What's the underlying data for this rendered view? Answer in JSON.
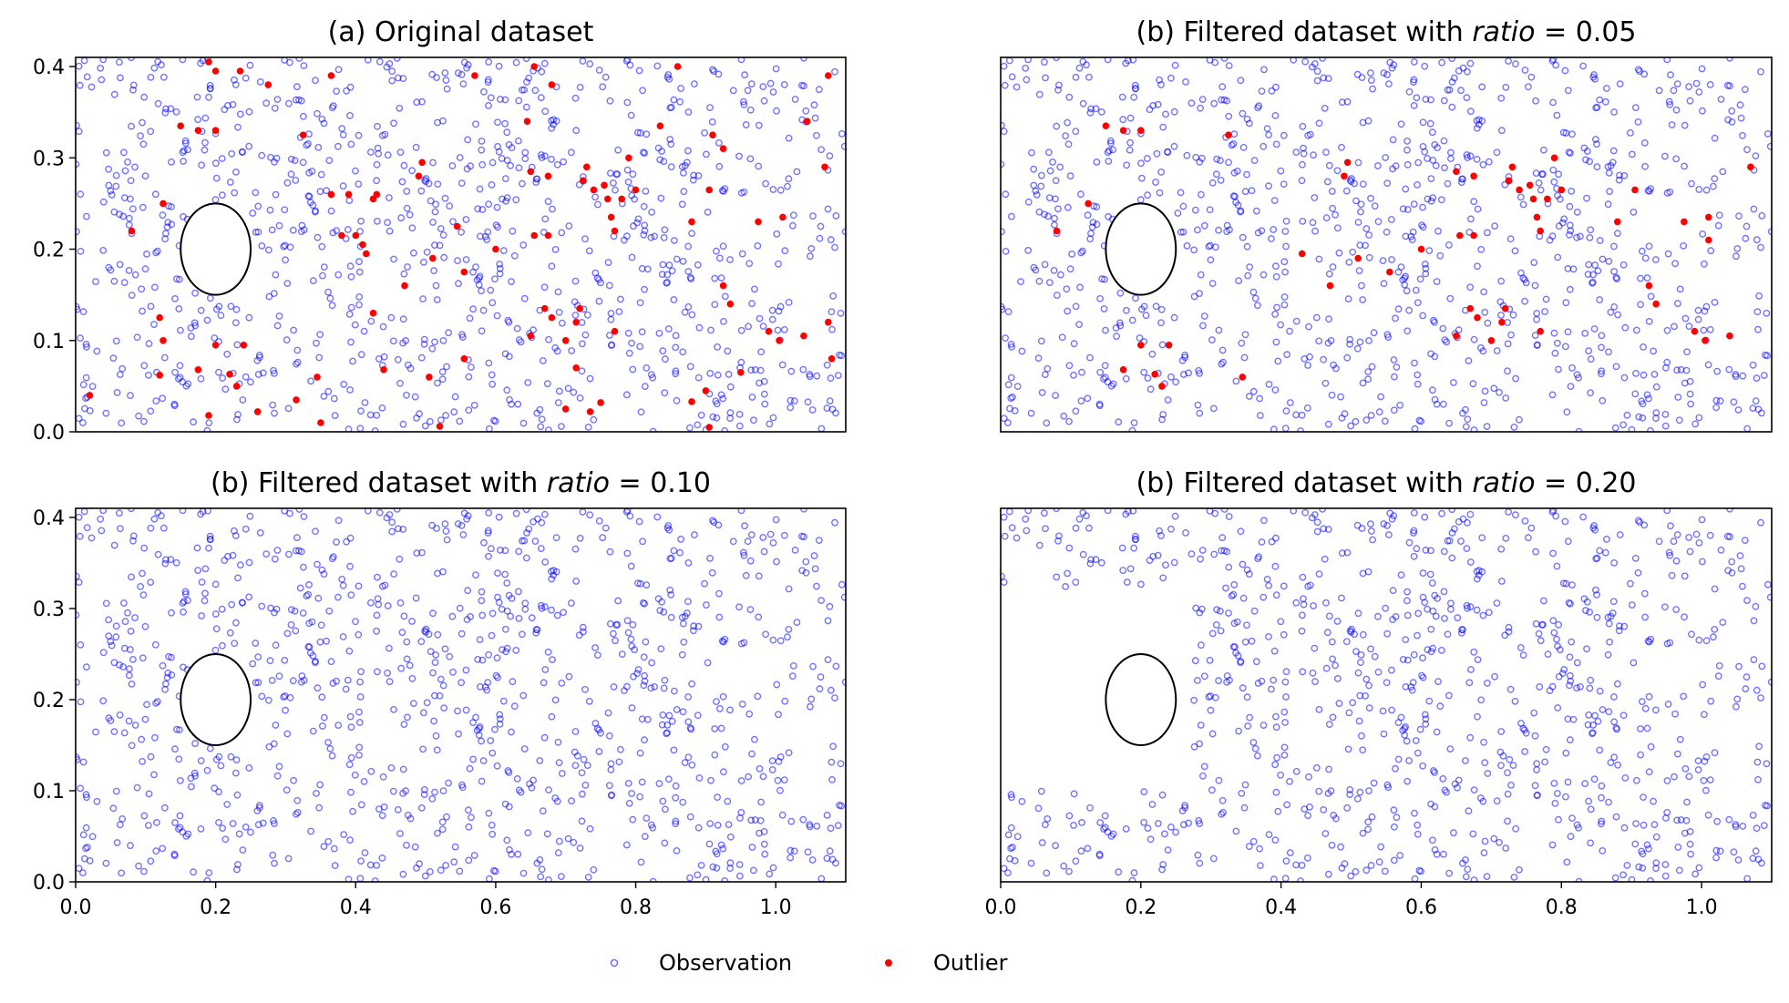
{
  "colors": {
    "observation": "#0000ff",
    "outlier": "#ff0000",
    "cylinder": "#000000",
    "axes": "#000000"
  },
  "legend": {
    "observation_label": "Observation",
    "outlier_label": "Outlier",
    "placement": "bottom-center"
  },
  "chart_data": [
    {
      "type": "scatter",
      "title_prefix": "(a) Original dataset",
      "title_italic": "",
      "title_suffix": "",
      "xlim": [
        0.0,
        1.1
      ],
      "ylim": [
        0.0,
        0.41
      ],
      "xticks": [
        "0.0",
        "0.2",
        "0.4",
        "0.6",
        "0.8",
        "1.0"
      ],
      "yticks": [
        "0.0",
        "0.1",
        "0.2",
        "0.3",
        "0.4"
      ],
      "show_xticks": false,
      "show_yticks": true,
      "cylinder": {
        "center": [
          0.2,
          0.2
        ],
        "radius": 0.05
      },
      "observation": {
        "seed": 7,
        "count": 1000,
        "exclude_x_below": null,
        "max_x": 1.1
      },
      "series": [
        {
          "name": "Outlier",
          "points": [
            [
              0.19,
              0.405
            ],
            [
              0.2,
              0.395
            ],
            [
              0.235,
              0.395
            ],
            [
              0.275,
              0.38
            ],
            [
              0.365,
              0.39
            ],
            [
              0.57,
              0.39
            ],
            [
              0.655,
              0.4
            ],
            [
              0.68,
              0.38
            ],
            [
              0.86,
              0.4
            ],
            [
              1.075,
              0.39
            ],
            [
              0.15,
              0.335
            ],
            [
              0.175,
              0.33
            ],
            [
              0.2,
              0.33
            ],
            [
              0.325,
              0.325
            ],
            [
              0.645,
              0.34
            ],
            [
              0.835,
              0.335
            ],
            [
              1.045,
              0.34
            ],
            [
              0.91,
              0.325
            ],
            [
              0.925,
              0.31
            ],
            [
              0.495,
              0.295
            ],
            [
              0.49,
              0.28
            ],
            [
              0.65,
              0.285
            ],
            [
              0.675,
              0.28
            ],
            [
              0.73,
              0.29
            ],
            [
              0.725,
              0.275
            ],
            [
              0.79,
              0.3
            ],
            [
              1.07,
              0.29
            ],
            [
              0.125,
              0.25
            ],
            [
              0.365,
              0.26
            ],
            [
              0.39,
              0.26
            ],
            [
              0.43,
              0.26
            ],
            [
              0.425,
              0.255
            ],
            [
              0.74,
              0.265
            ],
            [
              0.755,
              0.27
            ],
            [
              0.76,
              0.255
            ],
            [
              0.78,
              0.255
            ],
            [
              0.8,
              0.265
            ],
            [
              0.905,
              0.265
            ],
            [
              0.08,
              0.22
            ],
            [
              0.16,
              0.215
            ],
            [
              0.38,
              0.215
            ],
            [
              0.4,
              0.215
            ],
            [
              0.41,
              0.205
            ],
            [
              0.415,
              0.195
            ],
            [
              0.765,
              0.235
            ],
            [
              0.77,
              0.22
            ],
            [
              0.88,
              0.23
            ],
            [
              0.975,
              0.23
            ],
            [
              1.01,
              0.235
            ],
            [
              0.655,
              0.215
            ],
            [
              0.675,
              0.215
            ],
            [
              0.51,
              0.19
            ],
            [
              0.555,
              0.175
            ],
            [
              0.47,
              0.16
            ],
            [
              0.925,
              0.16
            ],
            [
              0.935,
              0.14
            ],
            [
              0.67,
              0.135
            ],
            [
              0.68,
              0.125
            ],
            [
              0.72,
              0.135
            ],
            [
              0.715,
              0.12
            ],
            [
              0.12,
              0.125
            ],
            [
              0.125,
              0.1
            ],
            [
              0.2,
              0.095
            ],
            [
              0.24,
              0.095
            ],
            [
              0.65,
              0.105
            ],
            [
              0.7,
              0.1
            ],
            [
              0.77,
              0.11
            ],
            [
              0.99,
              0.11
            ],
            [
              1.005,
              0.1
            ],
            [
              1.04,
              0.105
            ],
            [
              1.075,
              0.12
            ],
            [
              1.08,
              0.08
            ],
            [
              0.555,
              0.08
            ],
            [
              0.175,
              0.068
            ],
            [
              0.12,
              0.062
            ],
            [
              0.22,
              0.063
            ],
            [
              0.23,
              0.05
            ],
            [
              0.345,
              0.06
            ],
            [
              0.44,
              0.068
            ],
            [
              0.505,
              0.06
            ],
            [
              0.715,
              0.07
            ],
            [
              0.95,
              0.065
            ],
            [
              0.02,
              0.04
            ],
            [
              0.315,
              0.035
            ],
            [
              0.26,
              0.022
            ],
            [
              0.19,
              0.018
            ],
            [
              0.75,
              0.032
            ],
            [
              0.735,
              0.022
            ],
            [
              0.7,
              0.025
            ],
            [
              0.88,
              0.033
            ],
            [
              0.9,
              0.045
            ],
            [
              0.35,
              0.01
            ],
            [
              0.52,
              0.006
            ],
            [
              0.905,
              0.005
            ],
            [
              0.425,
              0.13
            ],
            [
              0.545,
              0.225
            ],
            [
              0.6,
              0.2
            ]
          ]
        }
      ]
    },
    {
      "type": "scatter",
      "title_prefix": "(b) Filtered dataset with ",
      "title_italic": "ratio",
      "title_suffix": " = 0.05",
      "xlim": [
        0.0,
        1.1
      ],
      "ylim": [
        0.0,
        0.41
      ],
      "xticks": [
        "0.0",
        "0.2",
        "0.4",
        "0.6",
        "0.8",
        "1.0"
      ],
      "yticks": [
        "0.0",
        "0.1",
        "0.2",
        "0.3",
        "0.4"
      ],
      "show_xticks": false,
      "show_yticks": false,
      "cylinder": {
        "center": [
          0.2,
          0.2
        ],
        "radius": 0.05
      },
      "observation": {
        "seed": 7,
        "count": 1000,
        "exclude_x_below": null,
        "max_x": 1.1
      },
      "series": [
        {
          "name": "Outlier",
          "points": [
            [
              0.15,
              0.335
            ],
            [
              0.175,
              0.33
            ],
            [
              0.2,
              0.33
            ],
            [
              0.325,
              0.325
            ],
            [
              0.495,
              0.295
            ],
            [
              0.49,
              0.28
            ],
            [
              0.65,
              0.285
            ],
            [
              0.675,
              0.28
            ],
            [
              0.73,
              0.29
            ],
            [
              0.725,
              0.275
            ],
            [
              0.79,
              0.3
            ],
            [
              1.07,
              0.29
            ],
            [
              0.125,
              0.25
            ],
            [
              0.74,
              0.265
            ],
            [
              0.755,
              0.27
            ],
            [
              0.76,
              0.255
            ],
            [
              0.78,
              0.255
            ],
            [
              0.8,
              0.265
            ],
            [
              0.905,
              0.265
            ],
            [
              0.08,
              0.22
            ],
            [
              0.765,
              0.235
            ],
            [
              0.77,
              0.22
            ],
            [
              0.88,
              0.23
            ],
            [
              0.975,
              0.23
            ],
            [
              1.01,
              0.235
            ],
            [
              0.655,
              0.215
            ],
            [
              0.675,
              0.215
            ],
            [
              0.51,
              0.19
            ],
            [
              0.555,
              0.175
            ],
            [
              0.47,
              0.16
            ],
            [
              0.925,
              0.16
            ],
            [
              0.935,
              0.14
            ],
            [
              0.67,
              0.135
            ],
            [
              0.68,
              0.125
            ],
            [
              0.72,
              0.135
            ],
            [
              0.715,
              0.12
            ],
            [
              0.2,
              0.095
            ],
            [
              0.24,
              0.095
            ],
            [
              0.65,
              0.105
            ],
            [
              0.7,
              0.1
            ],
            [
              0.77,
              0.11
            ],
            [
              0.99,
              0.11
            ],
            [
              1.005,
              0.1
            ],
            [
              1.04,
              0.105
            ],
            [
              0.175,
              0.068
            ],
            [
              0.22,
              0.063
            ],
            [
              0.23,
              0.05
            ],
            [
              0.345,
              0.06
            ],
            [
              0.6,
              0.2
            ],
            [
              0.43,
              0.195
            ],
            [
              1.01,
              0.21
            ]
          ]
        }
      ]
    },
    {
      "type": "scatter",
      "title_prefix": "(b) Filtered dataset with ",
      "title_italic": "ratio",
      "title_suffix": " = 0.10",
      "xlim": [
        0.0,
        1.1
      ],
      "ylim": [
        0.0,
        0.41
      ],
      "xticks": [
        "0.0",
        "0.2",
        "0.4",
        "0.6",
        "0.8",
        "1.0"
      ],
      "yticks": [
        "0.0",
        "0.1",
        "0.2",
        "0.3",
        "0.4"
      ],
      "show_xticks": true,
      "show_yticks": true,
      "cylinder": {
        "center": [
          0.2,
          0.2
        ],
        "radius": 0.05
      },
      "observation": {
        "seed": 7,
        "count": 1000,
        "exclude_x_below": null,
        "max_x": 1.1
      },
      "series": [
        {
          "name": "Outlier",
          "points": []
        }
      ]
    },
    {
      "type": "scatter",
      "title_prefix": "(b) Filtered dataset with ",
      "title_italic": "ratio",
      "title_suffix": " = 0.20",
      "xlim": [
        0.0,
        1.1
      ],
      "ylim": [
        0.0,
        0.41
      ],
      "xticks": [
        "0.0",
        "0.2",
        "0.4",
        "0.6",
        "0.8",
        "1.0"
      ],
      "yticks": [
        "0.0",
        "0.1",
        "0.2",
        "0.3",
        "0.4"
      ],
      "show_xticks": true,
      "show_yticks": false,
      "cylinder": {
        "center": [
          0.2,
          0.2
        ],
        "radius": 0.05
      },
      "observation": {
        "seed": 7,
        "count": 1000,
        "exclude_x_below": [
          0.0,
          0.27,
          0.1,
          0.32
        ],
        "max_x": 1.1
      },
      "series": [
        {
          "name": "Outlier",
          "points": []
        }
      ]
    }
  ]
}
